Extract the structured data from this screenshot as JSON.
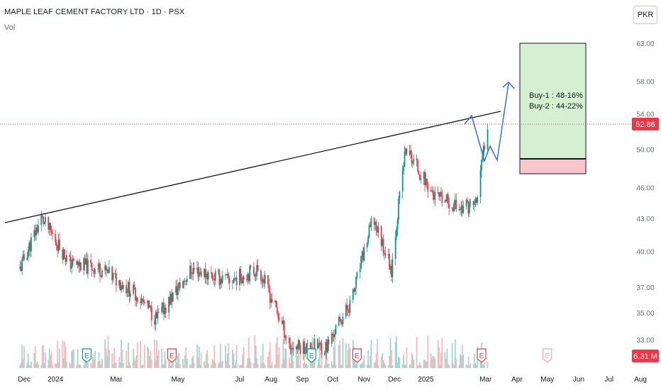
{
  "header": {
    "title": "MAPLE LEAF CEMENT FACTORY LTD · 1D · PSX",
    "volume_label": "Vol",
    "currency": "PKR"
  },
  "price_axis": {
    "labels": [
      "63.00",
      "58.00",
      "54.00",
      "50.00",
      "46.00",
      "43.00",
      "40.00",
      "37.00",
      "35.00",
      "33.00"
    ],
    "last_price_label": "52.86",
    "volume_label": "6.31 M",
    "log_scale": true
  },
  "time_axis": {
    "labels": [
      "Dec",
      "2024",
      "Mar",
      "May",
      "Jul",
      "Aug",
      "Sep",
      "Oct",
      "Nov",
      "Dec",
      "2025",
      "Mar",
      "Apr",
      "May",
      "Jun",
      "Jul",
      "Aug"
    ]
  },
  "annotation": {
    "lines": [
      "Buy-1 : 48-16%",
      "Buy-2 : 44-22%"
    ],
    "zone_top": 63.0,
    "zone_entry": 49.0,
    "zone_stop": 47.6
  },
  "colors": {
    "up": "#089981",
    "down": "#f23645",
    "trendline": "#131722",
    "projection": "#2962ff",
    "target_zone": "#d4f0d0",
    "stop_zone": "#f8c6cc",
    "price_line": "#f23645",
    "volume_up": "#9fd8cf",
    "volume_down": "#f9b8bf"
  },
  "earnings_markers": [
    {
      "label": "E",
      "color": "#089981"
    },
    {
      "label": "E",
      "color": "#f23645"
    },
    {
      "label": "E",
      "color": "#089981"
    },
    {
      "label": "E",
      "color": "#f23645"
    },
    {
      "label": "E",
      "color": "#f23645"
    },
    {
      "label": "E",
      "color": "#f7a5ad"
    }
  ],
  "chart_data": {
    "type": "candlestick",
    "scale": "log",
    "ylim": [
      31.0,
      65.0
    ],
    "key_prices": [
      {
        "x": "2023-11-27",
        "price": 38.5
      },
      {
        "x": "2023-12-18",
        "price": 43.0
      },
      {
        "x": "2024-01-15",
        "price": 39.0
      },
      {
        "x": "2024-02-15",
        "price": 38.5
      },
      {
        "x": "2024-03-20",
        "price": 36.5
      },
      {
        "x": "2024-04-10",
        "price": 34.5
      },
      {
        "x": "2024-05-15",
        "price": 38.5
      },
      {
        "x": "2024-06-20",
        "price": 37.5
      },
      {
        "x": "2024-07-20",
        "price": 38.5
      },
      {
        "x": "2024-08-20",
        "price": 32.5
      },
      {
        "x": "2024-09-25",
        "price": 32.5
      },
      {
        "x": "2024-10-20",
        "price": 36.0
      },
      {
        "x": "2024-11-10",
        "price": 43.0
      },
      {
        "x": "2024-11-28",
        "price": 38.5
      },
      {
        "x": "2024-12-12",
        "price": 50.0
      },
      {
        "x": "2025-01-10",
        "price": 45.0
      },
      {
        "x": "2025-02-05",
        "price": 44.0
      },
      {
        "x": "2025-02-20",
        "price": 44.5
      },
      {
        "x": "2025-03-03",
        "price": 52.86
      }
    ],
    "last_price": 52.86,
    "last_volume": "6.31 M",
    "trendline": [
      {
        "x": "2023-11-20",
        "price": 42.5
      },
      {
        "x": "2025-04-20",
        "price": 54.3
      }
    ],
    "projection_path": [
      {
        "x": "2025-03-05",
        "price": 53.0
      },
      {
        "x": "2025-03-18",
        "price": 49.0
      },
      {
        "x": "2025-03-26",
        "price": 51.0
      },
      {
        "x": "2025-04-03",
        "price": 49.2
      },
      {
        "x": "2025-04-30",
        "price": 58.0
      }
    ]
  }
}
